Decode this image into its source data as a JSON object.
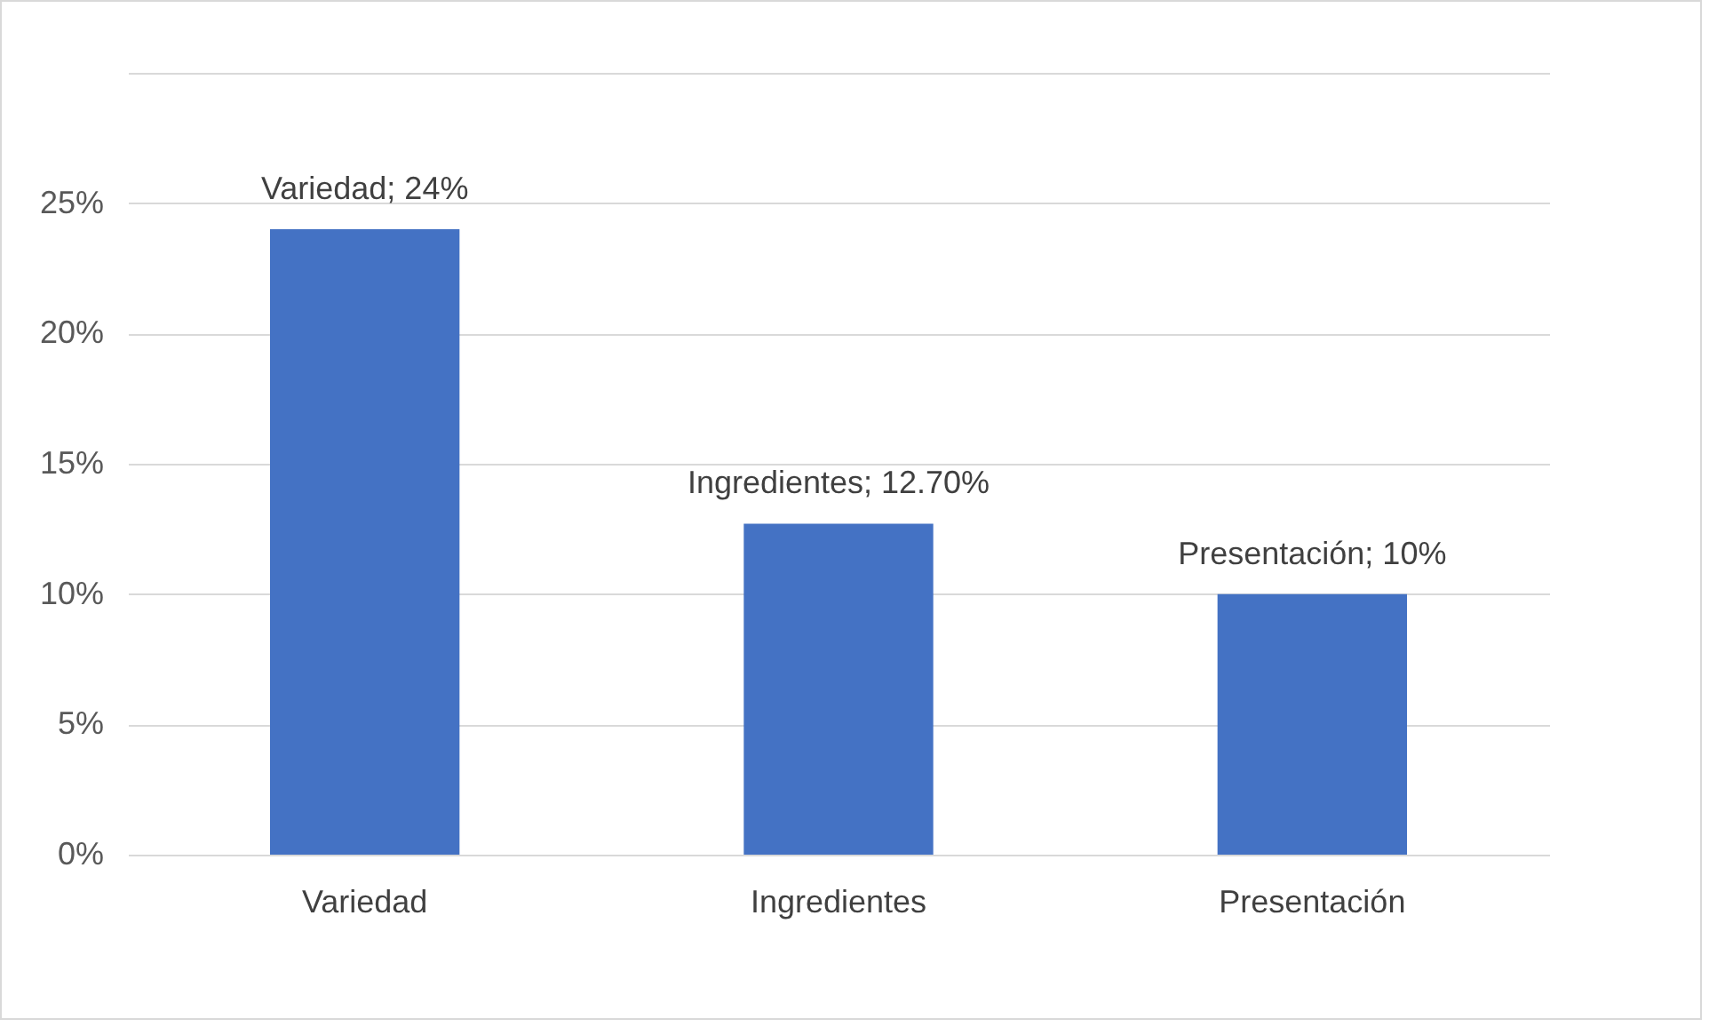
{
  "chart_data": {
    "type": "bar",
    "categories": [
      "Variedad",
      "Ingredientes",
      "Presentación"
    ],
    "values": [
      24,
      12.7,
      10
    ],
    "color": "#4472c4",
    "value_labels": [
      "Variedad; 24%",
      "Ingredientes; 12.70%",
      "Presentación; 10%"
    ],
    "ylim": [
      0,
      30
    ],
    "yticks": [
      {
        "value": 0,
        "label": "0%"
      },
      {
        "value": 5,
        "label": "5%"
      },
      {
        "value": 10,
        "label": "10%"
      },
      {
        "value": 15,
        "label": "15%"
      },
      {
        "value": 20,
        "label": "20%"
      },
      {
        "value": 25,
        "label": "25%"
      },
      {
        "value": 30,
        "label": null
      }
    ],
    "grid": "y"
  }
}
